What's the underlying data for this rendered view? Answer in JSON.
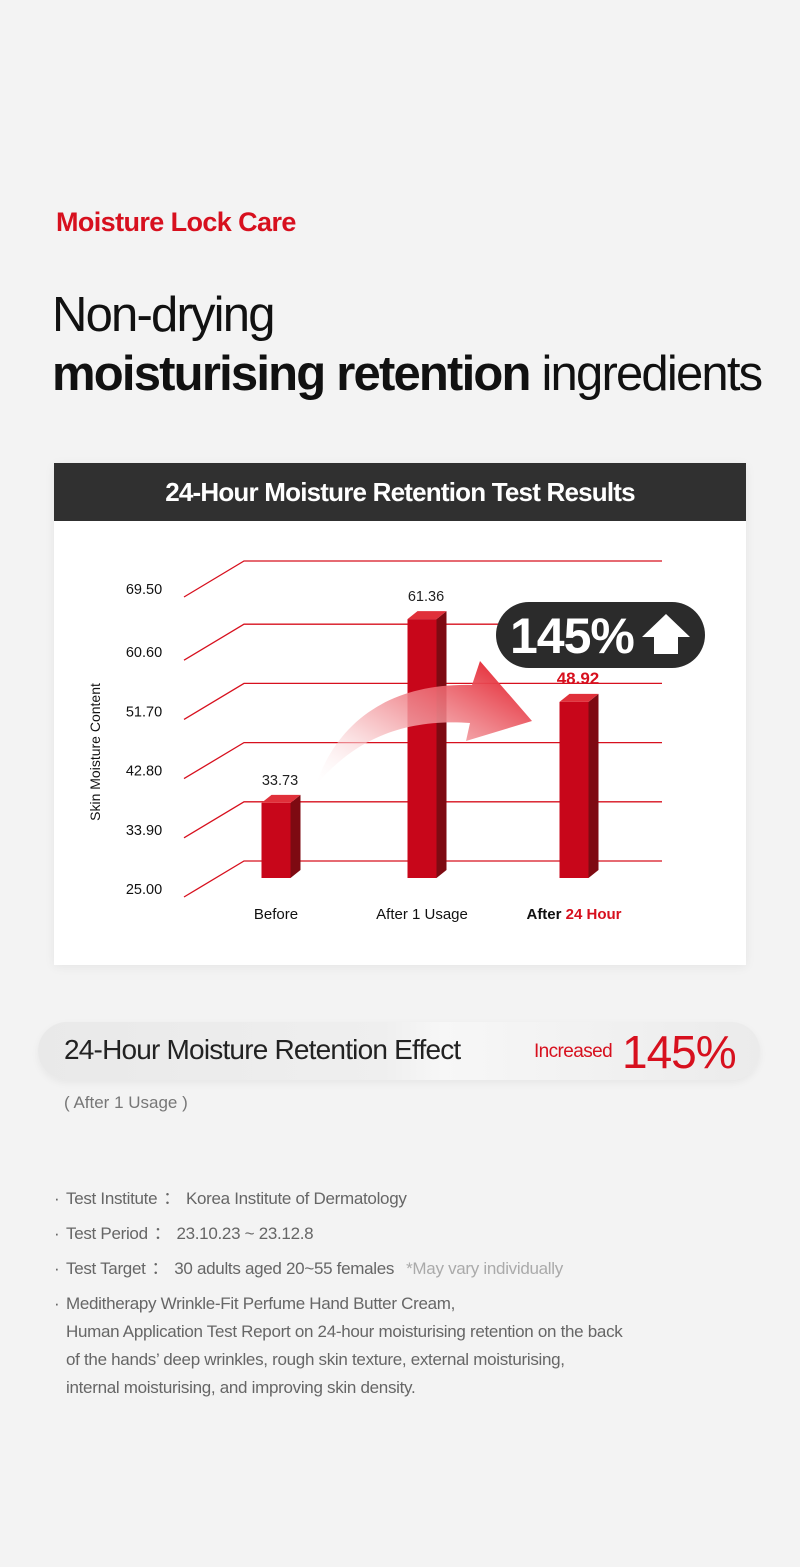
{
  "header": {
    "eyebrow": "Moisture Lock Care",
    "headline_line1": "Non-drying",
    "headline_bold": "moisturising retention",
    "headline_rest": " ingredients"
  },
  "chart_card": {
    "title": "24-Hour Moisture Retention Test Results",
    "badge": {
      "value": "145%",
      "icon": "up-arrow-icon"
    }
  },
  "chart_data": {
    "type": "bar",
    "title": "24-Hour Moisture Retention Test Results",
    "ylabel": "Skin Moisture Content",
    "xlabel": "",
    "yticks": [
      "25.00",
      "33.90",
      "42.80",
      "51.70",
      "60.60",
      "69.50"
    ],
    "ylim": [
      25.0,
      69.5
    ],
    "categories": [
      "Before",
      "After 1 Usage",
      "After 24 Hour"
    ],
    "category_highlight": {
      "prefix": "After ",
      "highlight": "24 Hour"
    },
    "values": [
      33.73,
      61.36,
      48.92
    ],
    "value_labels": [
      "33.73",
      "61.36",
      "48.92"
    ],
    "highlight_index": 2,
    "grid": true,
    "colors": {
      "bar_front": "#c8061a",
      "bar_side": "#7e0a12",
      "bar_top": "#e0303a",
      "grid": "#d7101e",
      "accent": "#d7101e"
    }
  },
  "effect": {
    "title": "24-Hour Moisture Retention Effect",
    "increase_label": "Increased",
    "increase_value": "145%",
    "subnote": "( After 1 Usage )"
  },
  "notes": {
    "institute": {
      "label": "Test Institute",
      "sep": "：",
      "value": "Korea Institute of Dermatology"
    },
    "period": {
      "label": "Test Period",
      "sep": "：",
      "value": "23.10.23 ~ 23.12.8"
    },
    "target": {
      "label": "Test Target",
      "sep": "：",
      "value": "30 adults aged 20~55 females",
      "disclaimer": "*May vary individually"
    },
    "description": [
      "Meditherapy Wrinkle-Fit Perfume Hand Butter Cream,",
      "Human Application Test Report on 24-hour moisturising retention on the back",
      "of the hands’ deep wrinkles, rough skin texture, external moisturising,",
      "internal moisturising, and improving skin density."
    ]
  },
  "colors": {
    "accent": "#d7101e",
    "dark": "#303030",
    "background": "#f3f3f3"
  }
}
